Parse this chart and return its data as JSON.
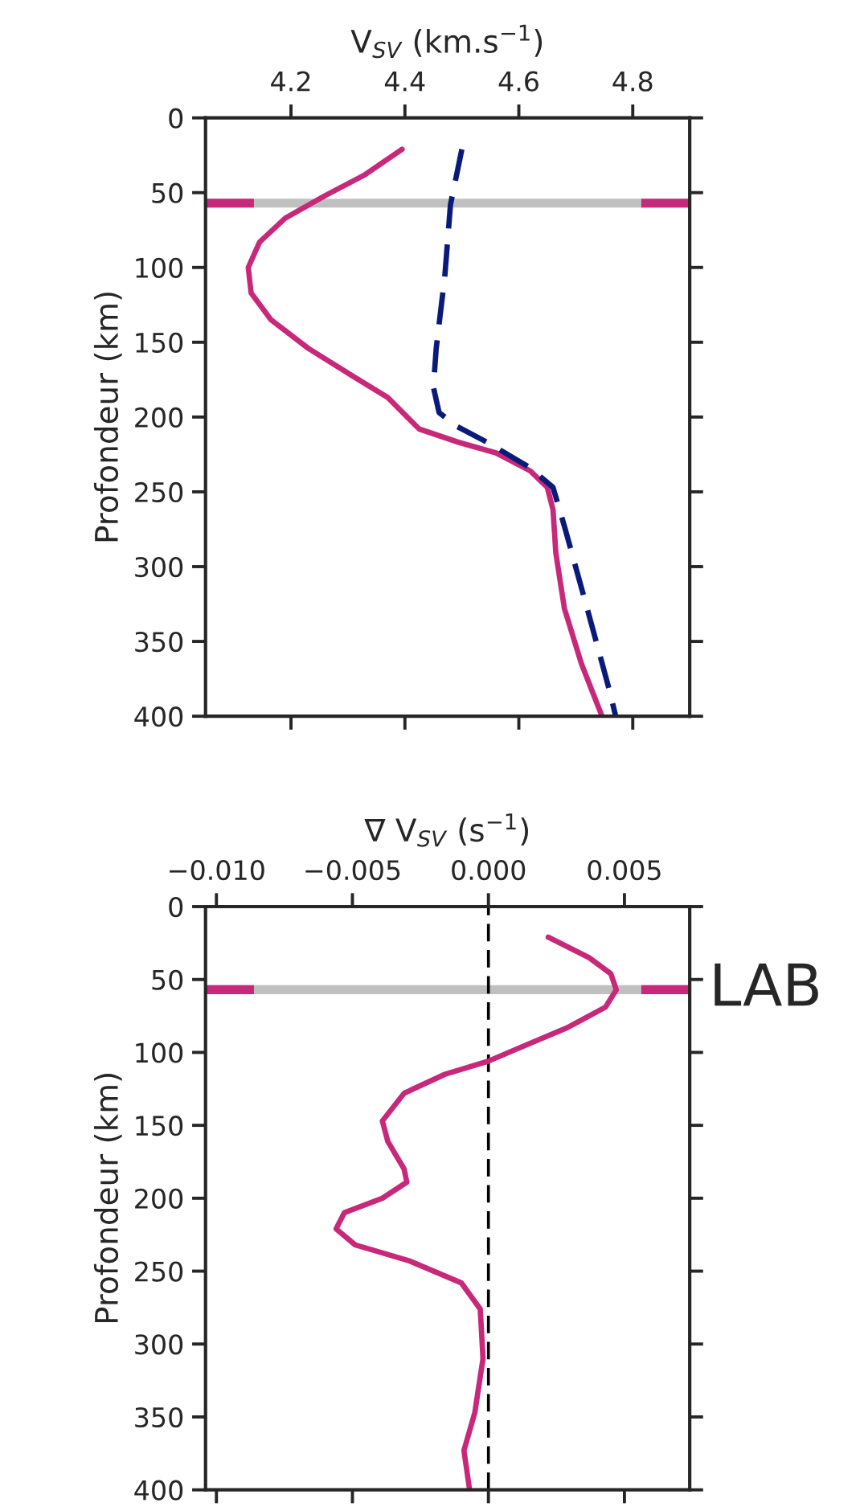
{
  "chart_data": [
    {
      "type": "line",
      "xlabel": "V$_{SV}$ (km.s$^{−1}$)",
      "ylabel": "Profondeur (km)",
      "xlim": [
        4.05,
        4.9
      ],
      "xticks": [
        4.2,
        4.4,
        4.6,
        4.8
      ],
      "ylim": [
        400,
        0
      ],
      "yticks": [
        0,
        50,
        100,
        150,
        200,
        250,
        300,
        350,
        400
      ],
      "grid": false,
      "series": [
        {
          "color": "#c8287a",
          "line_style": "solid",
          "x": [
            4.395,
            4.33,
            4.26,
            4.19,
            4.145,
            4.125,
            4.13,
            4.165,
            4.23,
            4.31,
            4.37,
            4.425,
            4.495,
            4.56,
            4.62,
            4.65,
            4.66,
            4.665,
            4.68,
            4.71,
            4.745
          ],
          "values": [
            21,
            38,
            52,
            67,
            83,
            100,
            117,
            135,
            154,
            173,
            187,
            208,
            217,
            224,
            236,
            247,
            262,
            291,
            328,
            365,
            399
          ]
        },
        {
          "color": "#0a1a7a",
          "line_style": "dashed",
          "x": [
            4.5,
            4.48,
            4.47,
            4.455,
            4.45,
            4.46,
            4.49,
            4.545,
            4.62,
            4.66,
            4.68,
            4.72,
            4.76,
            4.77
          ],
          "values": [
            21,
            58,
            106,
            154,
            180,
            197,
            206,
            217,
            234,
            247,
            273,
            328,
            384,
            400
          ]
        }
      ],
      "ref_lines": [
        {
          "axis": "y",
          "value": 57,
          "color": "#c0c0c0"
        }
      ]
    },
    {
      "type": "line",
      "xlabel": "∇ V$_{SV}$ (s$^{−1}$)",
      "ylabel": "Profondeur (km)",
      "xlim": [
        -0.0104,
        0.0074
      ],
      "xticks": [
        {
          "value": -0.01,
          "label": "−0.010"
        },
        {
          "value": -0.005,
          "label": "−0.005"
        },
        {
          "value": 0,
          "label": "0.000"
        },
        0.005
      ],
      "ylim": [
        400,
        0
      ],
      "yticks": [
        0,
        50,
        100,
        150,
        200,
        250,
        300,
        350,
        400
      ],
      "grid": false,
      "series": [
        {
          "color": "#c8287a",
          "line_style": "solid",
          "x": [
            0.0022,
            0.0037,
            0.0045,
            0.0047,
            0.0043,
            0.0029,
            0.001,
            0.0,
            -0.0016,
            -0.0031,
            -0.0039,
            -0.0037,
            -0.0031,
            -0.003,
            -0.0039,
            -0.0053,
            -0.0056,
            -0.0049,
            -0.0029,
            -0.001,
            -0.0003,
            -0.0002,
            -0.0005,
            -0.0009,
            -0.0007
          ],
          "values": [
            21,
            35,
            46,
            57,
            69,
            83,
            98,
            106,
            115,
            128,
            147,
            161,
            180,
            189,
            200,
            210,
            221,
            232,
            243,
            258,
            276,
            310,
            347,
            373,
            399
          ]
        }
      ],
      "ref_lines": [
        {
          "axis": "y",
          "value": 57,
          "color": "#c0c0c0",
          "label": "LAB"
        },
        {
          "axis": "x",
          "value": 0,
          "color": "#000000",
          "line_style": "dashed"
        }
      ]
    }
  ]
}
